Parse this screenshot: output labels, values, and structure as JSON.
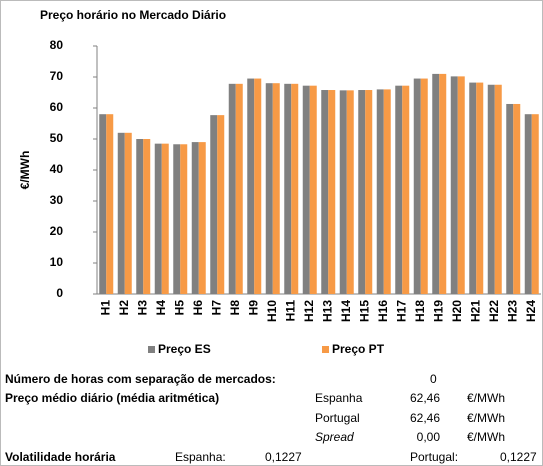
{
  "chart_data": {
    "type": "bar",
    "title": "Preço horário no Mercado Diário",
    "y_label": "€/MWh",
    "categories": [
      "H1",
      "H2",
      "H3",
      "H4",
      "H5",
      "H6",
      "H7",
      "H8",
      "H9",
      "H10",
      "H11",
      "H12",
      "H13",
      "H14",
      "H15",
      "H16",
      "H17",
      "H18",
      "H19",
      "H20",
      "H21",
      "H22",
      "H23",
      "H24"
    ],
    "series": [
      {
        "name": "Preço ES",
        "color": "#808080",
        "values": [
          58,
          52,
          50,
          48.5,
          48.3,
          49,
          57.7,
          67.8,
          69.5,
          68,
          67.8,
          67.2,
          65.8,
          65.7,
          65.8,
          66,
          67.2,
          69.5,
          71,
          70.2,
          68.2,
          67.5,
          61.3,
          58
        ]
      },
      {
        "name": "Preço PT",
        "color": "#f79a46",
        "values": [
          58,
          52,
          50,
          48.5,
          48.3,
          49,
          57.7,
          67.8,
          69.5,
          68,
          67.8,
          67.2,
          65.8,
          65.7,
          65.8,
          66,
          67.2,
          69.5,
          71,
          70.2,
          68.2,
          67.5,
          61.3,
          58
        ]
      }
    ],
    "ylim": [
      0,
      80
    ],
    "yticks": [
      0,
      10,
      20,
      30,
      40,
      50,
      60,
      70,
      80
    ],
    "grid": false,
    "legend": "bottom"
  },
  "summary": {
    "hours_label": "Número de horas com separação de mercados:",
    "hours_value": "0",
    "avg_label": "Preço médio diário (média aritmética)",
    "avg_rows": [
      {
        "name": "Espanha",
        "value": "62,46",
        "unit": "€/MWh"
      },
      {
        "name": "Portugal",
        "value": "62,46",
        "unit": "€/MWh"
      },
      {
        "name": "Spread",
        "value": "0,00",
        "unit": "€/MWh"
      }
    ],
    "volatility": {
      "label": "Volatilidade horária",
      "es_label": "Espanha:",
      "es_value": "0,1227",
      "pt_label": "Portugal:",
      "pt_value": "0,1227"
    }
  }
}
